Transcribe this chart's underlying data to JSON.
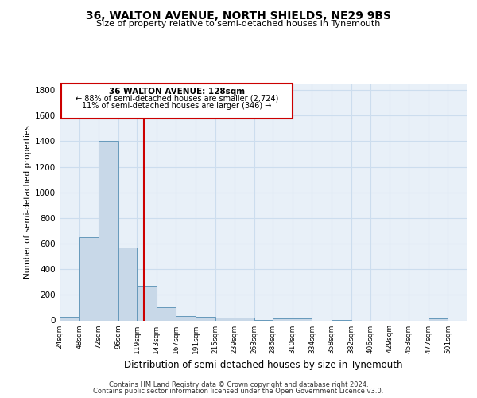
{
  "title1": "36, WALTON AVENUE, NORTH SHIELDS, NE29 9BS",
  "title2": "Size of property relative to semi-detached houses in Tynemouth",
  "xlabel": "Distribution of semi-detached houses by size in Tynemouth",
  "ylabel": "Number of semi-detached properties",
  "footer1": "Contains HM Land Registry data © Crown copyright and database right 2024.",
  "footer2": "Contains public sector information licensed under the Open Government Licence v3.0.",
  "bar_left_edges": [
    24,
    48,
    72,
    96,
    119,
    143,
    167,
    191,
    215,
    239,
    263,
    286,
    310,
    334,
    358,
    382,
    406,
    429,
    453,
    477
  ],
  "bar_widths": [
    24,
    24,
    24,
    23,
    24,
    24,
    24,
    24,
    24,
    24,
    23,
    24,
    24,
    24,
    24,
    24,
    23,
    24,
    24,
    24
  ],
  "bar_heights": [
    30,
    650,
    1400,
    570,
    270,
    100,
    35,
    25,
    20,
    20,
    5,
    15,
    15,
    0,
    5,
    0,
    0,
    0,
    0,
    15
  ],
  "tick_labels": [
    "24sqm",
    "48sqm",
    "72sqm",
    "96sqm",
    "119sqm",
    "143sqm",
    "167sqm",
    "191sqm",
    "215sqm",
    "239sqm",
    "263sqm",
    "286sqm",
    "310sqm",
    "334sqm",
    "358sqm",
    "382sqm",
    "406sqm",
    "429sqm",
    "453sqm",
    "477sqm",
    "501sqm"
  ],
  "tick_positions": [
    24,
    48,
    72,
    96,
    119,
    143,
    167,
    191,
    215,
    239,
    263,
    286,
    310,
    334,
    358,
    382,
    406,
    429,
    453,
    477,
    501
  ],
  "bar_color": "#c8d8e8",
  "bar_edge_color": "#6699bb",
  "property_x": 128,
  "property_label": "36 WALTON AVENUE: 128sqm",
  "pct_smaller": 88,
  "n_smaller": 2724,
  "pct_larger": 11,
  "n_larger": 346,
  "vline_color": "#cc0000",
  "annotation_box_color": "#cc0000",
  "ylim": [
    0,
    1850
  ],
  "yticks": [
    0,
    200,
    400,
    600,
    800,
    1000,
    1200,
    1400,
    1600,
    1800
  ],
  "grid_color": "#ccddee",
  "bg_color": "#e8f0f8",
  "xlim_left": 24,
  "xlim_right": 525
}
